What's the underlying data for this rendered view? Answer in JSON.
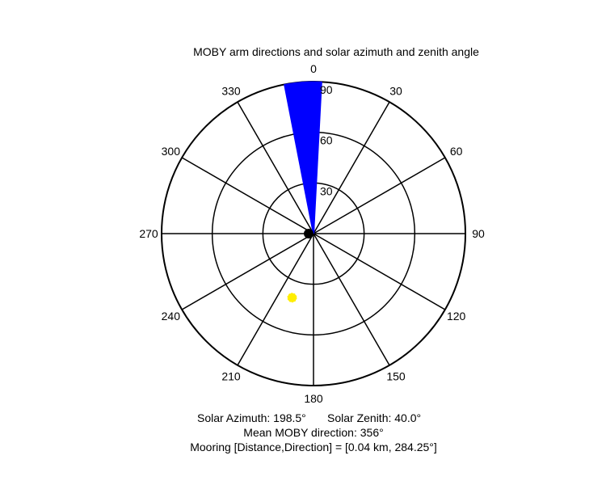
{
  "chart_data": {
    "type": "polar",
    "title": "MOBY arm directions and solar azimuth and zenith angle",
    "orientation": "clockwise, 0 at top",
    "angle_ticks": [
      "0",
      "30",
      "60",
      "90",
      "120",
      "150",
      "180",
      "210",
      "240",
      "270",
      "300",
      "330"
    ],
    "radial_ticks": [
      "30",
      "60",
      "90"
    ],
    "rlim": [
      0,
      90
    ],
    "grid": true,
    "arm_directions": {
      "color": "#0000ff",
      "radius": 90,
      "directions_deg": [
        349,
        350,
        351,
        352,
        353,
        354,
        355,
        356,
        357,
        358,
        359,
        0,
        1,
        2,
        3
      ]
    },
    "center_marker": {
      "color": "#000000"
    },
    "sun_marker": {
      "azimuth_deg": 198.5,
      "zenith_deg": 40.0,
      "color": "#ffee00"
    },
    "captions": {
      "line1_azimuth": "Solar Azimuth: 198.5°",
      "line1_zenith": "Solar Zenith: 40.0°",
      "line2": "Mean MOBY direction: 356°",
      "line3": "Mooring [Distance,Direction] = [0.04 km, 284.25°]"
    }
  }
}
